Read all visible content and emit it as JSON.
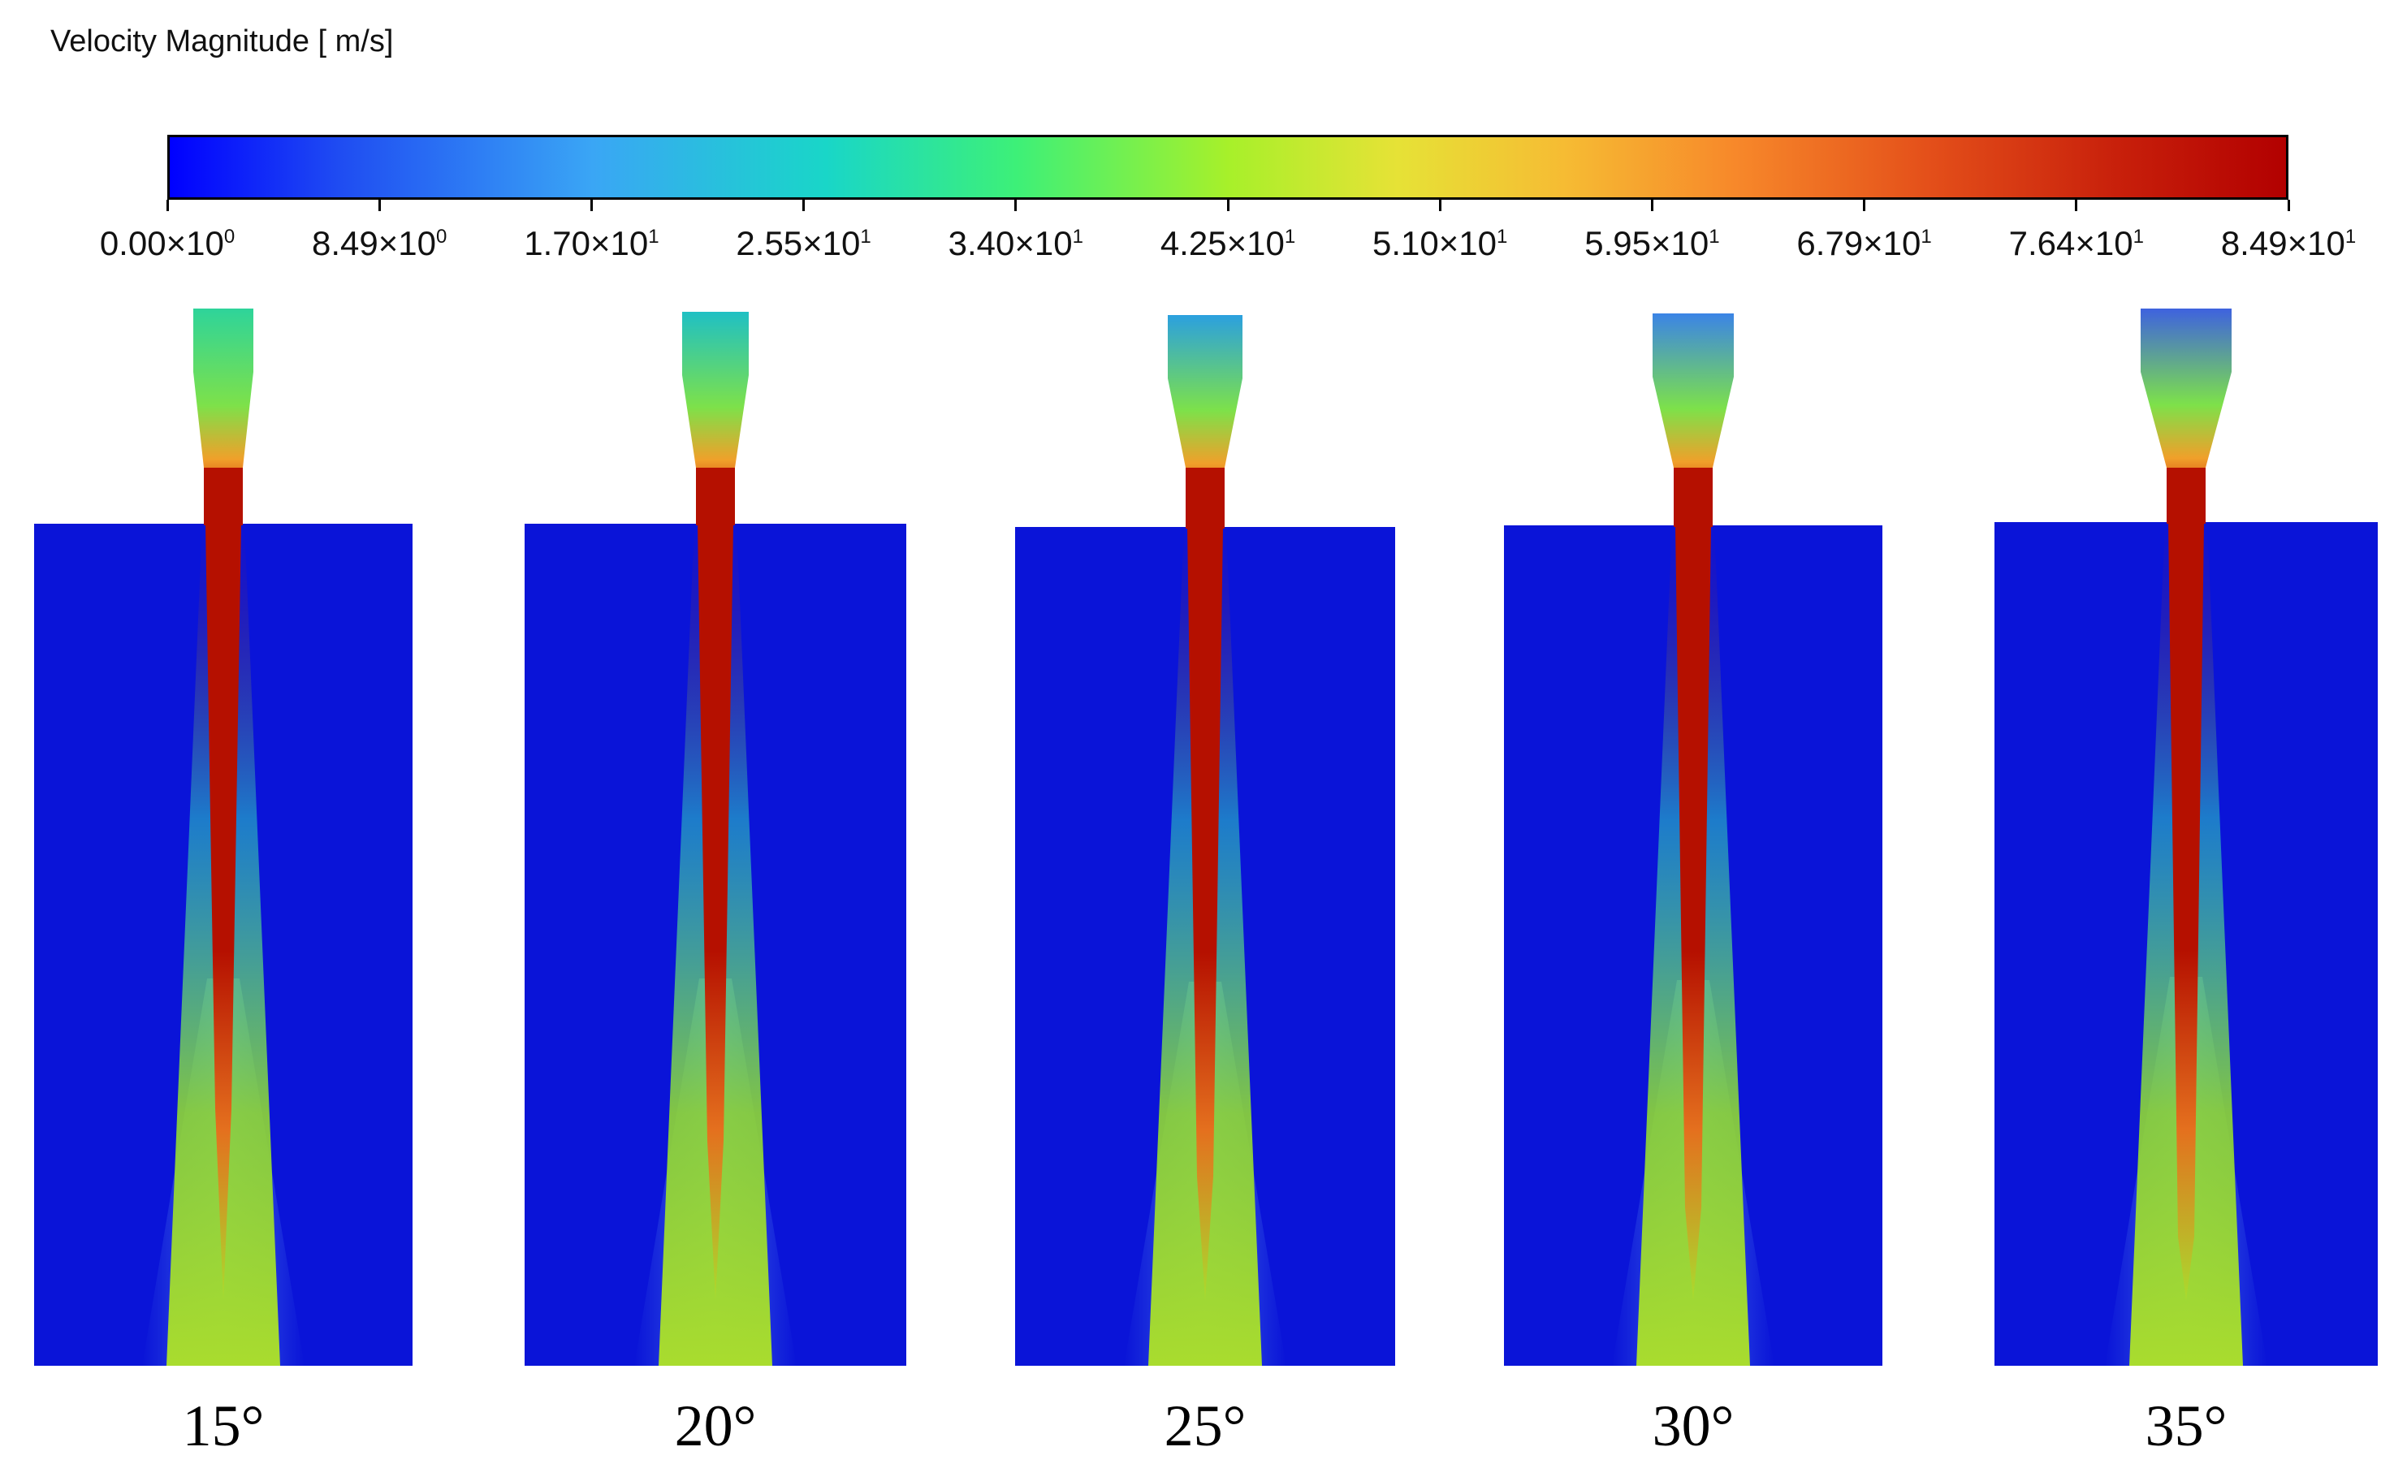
{
  "colorbar": {
    "title": "Velocity Magnitude [ m/s]",
    "min": 0,
    "max": 84.9,
    "ticks": [
      {
        "mantissa": "0.00",
        "exp": "0"
      },
      {
        "mantissa": "8.49",
        "exp": "0"
      },
      {
        "mantissa": "1.70",
        "exp": "1"
      },
      {
        "mantissa": "2.55",
        "exp": "1"
      },
      {
        "mantissa": "3.40",
        "exp": "1"
      },
      {
        "mantissa": "4.25",
        "exp": "1"
      },
      {
        "mantissa": "5.10",
        "exp": "1"
      },
      {
        "mantissa": "5.95",
        "exp": "1"
      },
      {
        "mantissa": "6.79",
        "exp": "1"
      },
      {
        "mantissa": "7.64",
        "exp": "1"
      },
      {
        "mantissa": "8.49",
        "exp": "1"
      }
    ]
  },
  "panels": [
    {
      "label": "15°",
      "inlet_color": "#2ed49a"
    },
    {
      "label": "20°",
      "inlet_color": "#1fc0c4"
    },
    {
      "label": "25°",
      "inlet_color": "#2ba0df"
    },
    {
      "label": "30°",
      "inlet_color": "#3b84e6"
    },
    {
      "label": "35°",
      "inlet_color": "#3e62df"
    }
  ],
  "colors": {
    "background_field": "#0a14d8",
    "jet_core": "#b51000",
    "mid_green": "#9ad92a"
  }
}
